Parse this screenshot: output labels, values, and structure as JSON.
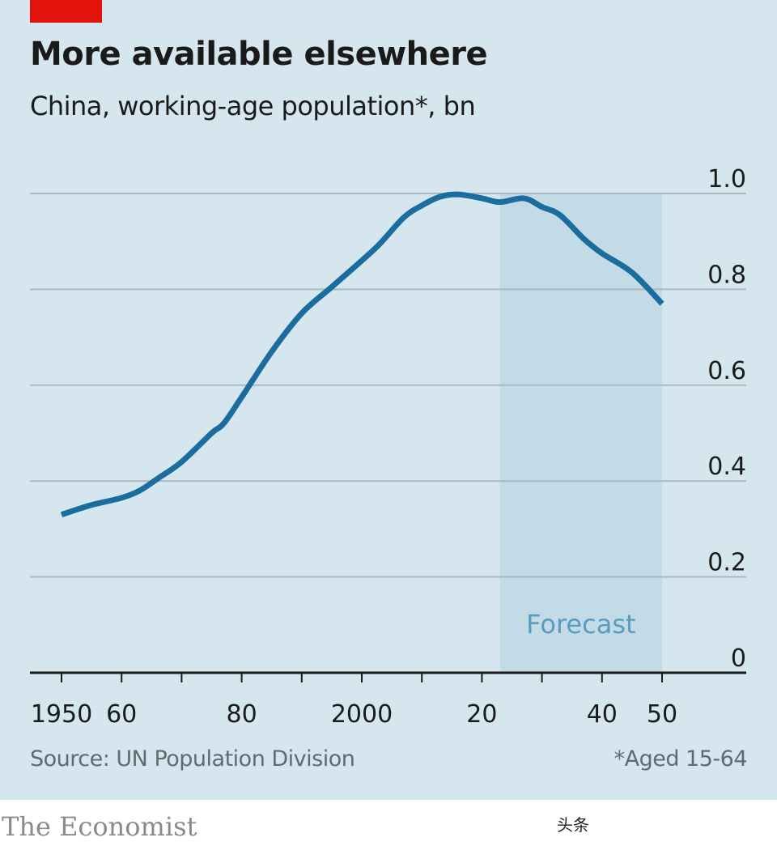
{
  "header": {
    "title": "More available elsewhere",
    "subtitle": "China, working-age population*, bn"
  },
  "footer": {
    "source": "Source: UN Population Division",
    "footnote": "*Aged 15-64",
    "brand": "The Economist",
    "watermark": "头条"
  },
  "colors": {
    "background": "#d6e6ee",
    "line": "#1a6d9c",
    "forecast_band": "#c3dbe6",
    "accent_red": "#e3120b"
  },
  "chart_data": {
    "type": "line",
    "title": "More available elsewhere",
    "subtitle": "China, working-age population*, bn",
    "xlabel": "",
    "ylabel": "bn",
    "xlim": [
      1950,
      2050
    ],
    "ylim": [
      0,
      1.0
    ],
    "grid": true,
    "y_axis_side": "right",
    "yticks": [
      0,
      0.2,
      0.4,
      0.6,
      0.8,
      1.0
    ],
    "ytick_labels": [
      "0",
      "0.2",
      "0.4",
      "0.6",
      "0.8",
      "1.0"
    ],
    "xticks": [
      1950,
      1960,
      1970,
      1980,
      1990,
      2000,
      2010,
      2020,
      2030,
      2040,
      2050
    ],
    "xtick_labels": [
      {
        "year": 1950,
        "label": "1950"
      },
      {
        "year": 1960,
        "label": "60"
      },
      {
        "year": 1980,
        "label": "80"
      },
      {
        "year": 2000,
        "label": "2000"
      },
      {
        "year": 2020,
        "label": "20"
      },
      {
        "year": 2040,
        "label": "40"
      },
      {
        "year": 2050,
        "label": "50"
      }
    ],
    "forecast": {
      "label": "Forecast",
      "start": 2023,
      "end": 2050
    },
    "series": [
      {
        "name": "Working-age population",
        "x": [
          1950,
          1955,
          1960,
          1963,
          1966,
          1970,
          1975,
          1977,
          1980,
          1985,
          1990,
          1995,
          2000,
          2003,
          2007,
          2010,
          2013,
          2016,
          2020,
          2023,
          2027,
          2030,
          2033,
          2037,
          2040,
          2045,
          2050
        ],
        "values": [
          0.33,
          0.35,
          0.365,
          0.38,
          0.405,
          0.44,
          0.5,
          0.52,
          0.575,
          0.67,
          0.75,
          0.805,
          0.86,
          0.895,
          0.95,
          0.975,
          0.993,
          0.998,
          0.99,
          0.982,
          0.99,
          0.972,
          0.955,
          0.905,
          0.875,
          0.835,
          0.77
        ]
      }
    ]
  }
}
